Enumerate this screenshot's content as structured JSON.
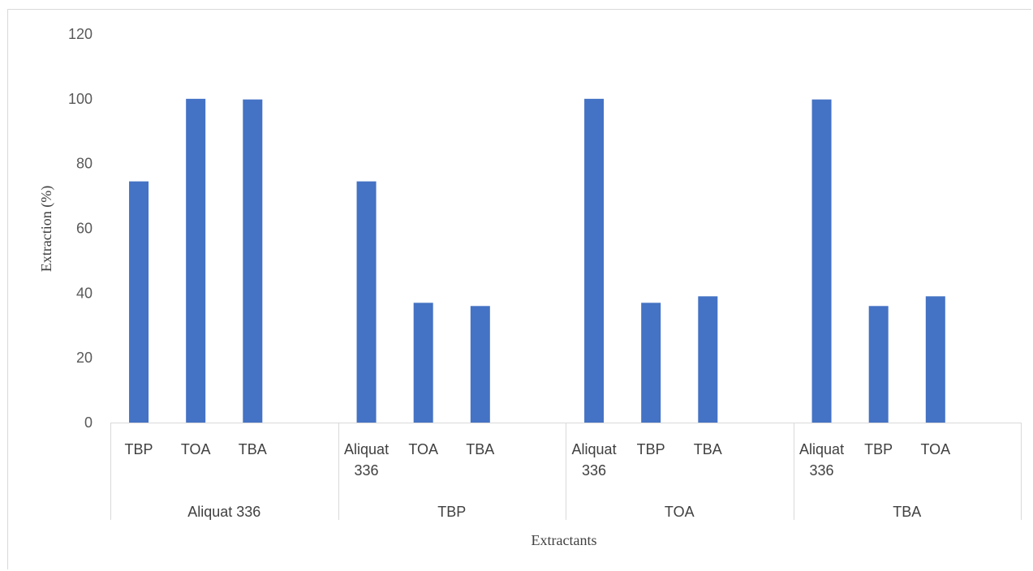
{
  "chart_data": {
    "type": "bar",
    "title": "",
    "xlabel": "Extractants",
    "ylabel": "Extraction (%)",
    "ylim": [
      0,
      120
    ],
    "yticks": [
      0,
      20,
      40,
      60,
      80,
      100,
      120
    ],
    "grid": false,
    "legend": "none",
    "bar_color": "#4472C4",
    "groups": [
      {
        "name": "Aliquat 336",
        "categories": [
          [
            "TBP"
          ],
          [
            "TOA"
          ],
          [
            "TBA"
          ]
        ],
        "values": [
          74.5,
          100,
          99.8
        ]
      },
      {
        "name": "TBP",
        "categories": [
          [
            "Aliquat",
            "336"
          ],
          [
            "TOA"
          ],
          [
            "TBA"
          ]
        ],
        "values": [
          74.5,
          37,
          36
        ]
      },
      {
        "name": "TOA",
        "categories": [
          [
            "Aliquat",
            "336"
          ],
          [
            "TBP"
          ],
          [
            "TBA"
          ]
        ],
        "values": [
          100,
          37,
          39
        ]
      },
      {
        "name": "TBA",
        "categories": [
          [
            "Aliquat",
            "336"
          ],
          [
            "TBP"
          ],
          [
            "TOA"
          ]
        ],
        "values": [
          99.8,
          36,
          39
        ]
      }
    ]
  }
}
